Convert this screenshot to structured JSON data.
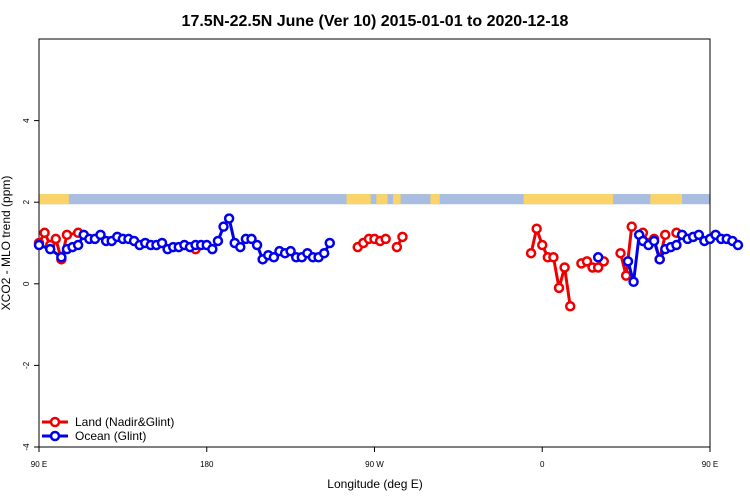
{
  "chart_data": {
    "type": "line",
    "title": "17.5N-22.5N June (Ver 10)   2015-01-01 to 2020-12-18",
    "xlabel": "Longitude (deg E)",
    "ylabel": "XCO2 - MLO trend (ppm)",
    "xlim": [
      -90,
      270
    ],
    "ylim": [
      -4,
      6
    ],
    "x_ticks": [
      {
        "value": -90,
        "label": "90 E"
      },
      {
        "value": 0,
        "label": "180"
      },
      {
        "value": 90,
        "label": "90 W"
      },
      {
        "value": 180,
        "label": "0"
      },
      {
        "value": 270,
        "label": "90 E"
      },
      {
        "value": 360,
        "label": "180"
      }
    ],
    "y_ticks": [
      {
        "value": -4,
        "label": "-4"
      },
      {
        "value": -2,
        "label": "-2"
      },
      {
        "value": 0,
        "label": "0"
      },
      {
        "value": 2,
        "label": "2"
      },
      {
        "value": 4,
        "label": "4"
      }
    ],
    "land_strip": {
      "y_range": [
        1.95,
        2.2
      ],
      "ocean_color": "#a8bde0",
      "land_color": "#fad46a",
      "land_spans": [
        [
          -90,
          -74
        ],
        [
          75,
          88
        ],
        [
          91,
          97
        ],
        [
          100,
          104
        ],
        [
          120,
          125
        ],
        [
          170,
          218
        ],
        [
          238,
          255
        ]
      ]
    },
    "legend_position": "bottom-left",
    "series": [
      {
        "name": "Land (Nadir&Glint)",
        "color": "#ee0000",
        "segments": [
          [
            [
              -90,
              1.0
            ],
            [
              -87,
              1.25
            ],
            [
              -84,
              0.95
            ],
            [
              -81,
              1.1
            ],
            [
              -78,
              0.6
            ],
            [
              -75,
              1.2
            ],
            [
              -69,
              1.25
            ]
          ],
          [
            [
              -6,
              0.85
            ]
          ],
          [
            [
              81,
              0.9
            ],
            [
              84,
              1.0
            ],
            [
              87,
              1.1
            ],
            [
              90,
              1.1
            ],
            [
              93,
              1.05
            ],
            [
              96,
              1.1
            ]
          ],
          [
            [
              102,
              0.9
            ],
            [
              105,
              1.15
            ]
          ],
          [
            [
              174,
              0.75
            ],
            [
              177,
              1.35
            ],
            [
              180,
              0.95
            ],
            [
              183,
              0.65
            ],
            [
              186,
              0.65
            ],
            [
              189,
              -0.1
            ],
            [
              192,
              0.4
            ],
            [
              195,
              -0.55
            ]
          ],
          [
            [
              201,
              0.5
            ],
            [
              204,
              0.55
            ],
            [
              207,
              0.4
            ],
            [
              210,
              0.4
            ],
            [
              213,
              0.55
            ]
          ],
          [
            [
              222,
              0.75
            ],
            [
              225,
              0.2
            ],
            [
              228,
              1.4
            ]
          ],
          [
            [
              234,
              1.25
            ],
            [
              237,
              1.0
            ],
            [
              240,
              1.1
            ],
            [
              243,
              0.6
            ],
            [
              246,
              1.2
            ]
          ],
          [
            [
              252,
              1.25
            ]
          ]
        ]
      },
      {
        "name": "Ocean (Glint)",
        "color": "#0000ee",
        "segments": [
          [
            [
              -90,
              0.95
            ],
            [
              -84,
              0.85
            ],
            [
              -78,
              0.65
            ],
            [
              -75,
              0.85
            ],
            [
              -72,
              0.9
            ],
            [
              -69,
              0.95
            ],
            [
              -66,
              1.2
            ],
            [
              -63,
              1.1
            ],
            [
              -60,
              1.1
            ],
            [
              -57,
              1.2
            ],
            [
              -54,
              1.05
            ],
            [
              -51,
              1.05
            ],
            [
              -48,
              1.15
            ],
            [
              -45,
              1.1
            ],
            [
              -42,
              1.1
            ],
            [
              -39,
              1.05
            ],
            [
              -36,
              0.95
            ],
            [
              -33,
              1.0
            ],
            [
              -30,
              0.95
            ],
            [
              -27,
              0.95
            ],
            [
              -24,
              1.0
            ],
            [
              -21,
              0.85
            ],
            [
              -18,
              0.9
            ],
            [
              -15,
              0.9
            ],
            [
              -12,
              0.95
            ],
            [
              -9,
              0.9
            ],
            [
              -6,
              0.95
            ],
            [
              -3,
              0.95
            ],
            [
              0,
              0.95
            ],
            [
              3,
              0.85
            ],
            [
              6,
              1.05
            ],
            [
              9,
              1.4
            ],
            [
              12,
              1.6
            ],
            [
              15,
              1.0
            ],
            [
              18,
              0.9
            ],
            [
              21,
              1.1
            ],
            [
              24,
              1.1
            ],
            [
              27,
              0.95
            ],
            [
              30,
              0.6
            ],
            [
              33,
              0.7
            ],
            [
              36,
              0.65
            ],
            [
              39,
              0.8
            ],
            [
              42,
              0.75
            ],
            [
              45,
              0.8
            ],
            [
              48,
              0.65
            ],
            [
              51,
              0.65
            ],
            [
              54,
              0.75
            ],
            [
              57,
              0.65
            ],
            [
              60,
              0.65
            ],
            [
              63,
              0.75
            ],
            [
              66,
              1.0
            ]
          ],
          [
            [
              210,
              0.65
            ]
          ],
          [
            [
              226,
              0.55
            ],
            [
              229,
              0.05
            ],
            [
              232,
              1.2
            ]
          ],
          [
            [
              234,
              1.05
            ],
            [
              237,
              0.95
            ],
            [
              240,
              1.05
            ],
            [
              243,
              0.6
            ],
            [
              246,
              0.85
            ],
            [
              249,
              0.9
            ],
            [
              252,
              0.95
            ],
            [
              255,
              1.2
            ],
            [
              258,
              1.1
            ],
            [
              261,
              1.15
            ],
            [
              264,
              1.2
            ],
            [
              267,
              1.05
            ],
            [
              270,
              1.1
            ],
            [
              273,
              1.2
            ],
            [
              276,
              1.1
            ],
            [
              279,
              1.1
            ],
            [
              282,
              1.05
            ],
            [
              285,
              0.95
            ]
          ]
        ]
      }
    ]
  }
}
